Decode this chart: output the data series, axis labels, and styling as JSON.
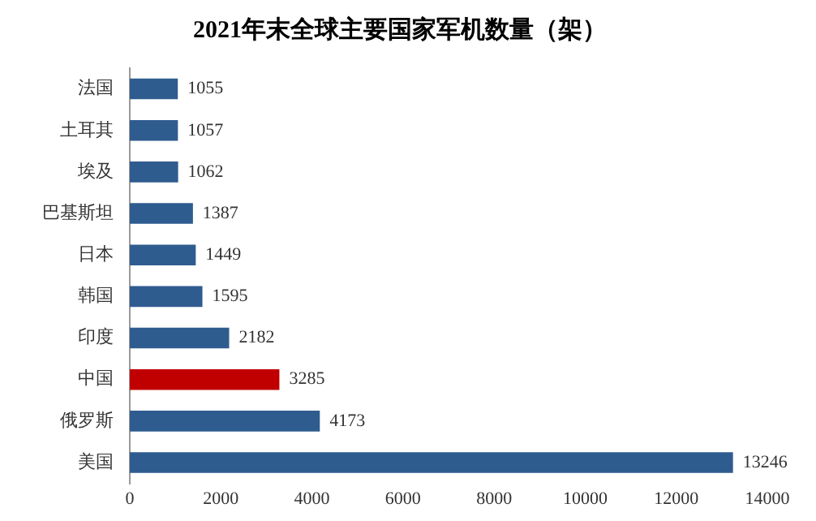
{
  "chart_data": {
    "type": "bar",
    "orientation": "horizontal",
    "title": "2021年末全球主要国家军机数量（架）",
    "categories": [
      "法国",
      "土耳其",
      "埃及",
      "巴基斯坦",
      "日本",
      "韩国",
      "印度",
      "中国",
      "俄罗斯",
      "美国"
    ],
    "values": [
      1055,
      1057,
      1062,
      1387,
      1449,
      1595,
      2182,
      3285,
      4173,
      13246
    ],
    "colors": [
      "#2f5c8f",
      "#2f5c8f",
      "#2f5c8f",
      "#2f5c8f",
      "#2f5c8f",
      "#2f5c8f",
      "#2f5c8f",
      "#c00000",
      "#2f5c8f",
      "#2f5c8f"
    ],
    "xlim": [
      0,
      14000
    ],
    "xticks": [
      0,
      2000,
      4000,
      6000,
      8000,
      10000,
      12000,
      14000
    ],
    "data_labels": true,
    "grid": false,
    "legend": false
  }
}
